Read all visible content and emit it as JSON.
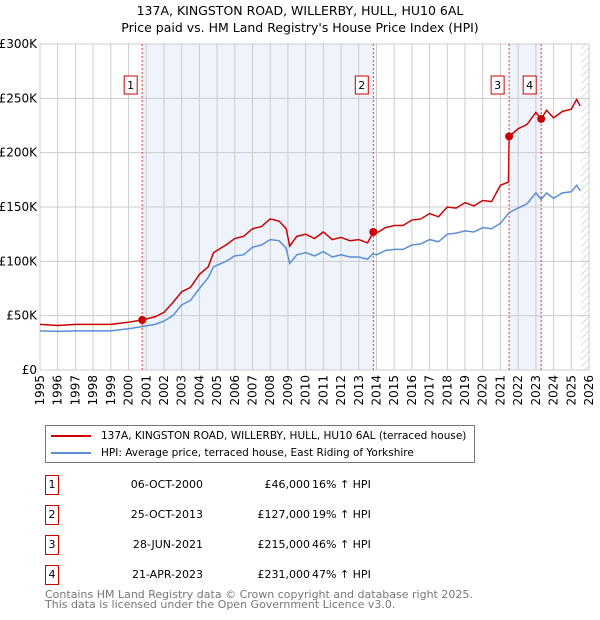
{
  "title_line1": "137A, KINGSTON ROAD, WILLERBY, HULL, HU10 6AL",
  "title_line2": "Price paid vs. HM Land Registry's House Price Index (HPI)",
  "chart_data": {
    "type": "line",
    "ylim": [
      0,
      300000
    ],
    "xlim": [
      1995,
      2026
    ],
    "yticks": [
      {
        "v": 0,
        "label": "£0"
      },
      {
        "v": 50000,
        "label": "£50K"
      },
      {
        "v": 100000,
        "label": "£100K"
      },
      {
        "v": 150000,
        "label": "£150K"
      },
      {
        "v": 200000,
        "label": "£200K"
      },
      {
        "v": 250000,
        "label": "£250K"
      },
      {
        "v": 300000,
        "label": "£300K"
      }
    ],
    "xticks": [
      "1995",
      "1996",
      "1997",
      "1998",
      "1999",
      "2000",
      "2001",
      "2002",
      "2003",
      "2004",
      "2005",
      "2006",
      "2007",
      "2008",
      "2009",
      "2010",
      "2011",
      "2012",
      "2013",
      "2014",
      "2015",
      "2016",
      "2017",
      "2018",
      "2019",
      "2020",
      "2021",
      "2022",
      "2023",
      "2024",
      "2025",
      "2026"
    ],
    "grid": true,
    "shaded_ranges": [
      [
        2000.77,
        2013.82
      ],
      [
        2021.49,
        2023.3
      ]
    ],
    "future_hatch_from": 2025.55,
    "series": [
      {
        "name": "137A, KINGSTON ROAD, WILLERBY, HULL, HU10 6AL (terraced house)",
        "color": "#cc0000",
        "x": [
          1995,
          1996,
          1997,
          1998,
          1999,
          2000,
          2000.77,
          2001.5,
          2002,
          2002.5,
          2003,
          2003.5,
          2004,
          2004.5,
          2004.8,
          2005.5,
          2006,
          2006.5,
          2007,
          2007.5,
          2008,
          2008.5,
          2008.9,
          2009.1,
          2009.5,
          2010,
          2010.5,
          2011,
          2011.5,
          2012,
          2012.5,
          2013,
          2013.5,
          2013.82,
          2014,
          2014.5,
          2015,
          2015.5,
          2016,
          2016.5,
          2017,
          2017.5,
          2018,
          2018.5,
          2019,
          2019.5,
          2020,
          2020.5,
          2021,
          2021.45,
          2021.49,
          2022,
          2022.5,
          2023,
          2023.3,
          2023.6,
          2024,
          2024.5,
          2025,
          2025.3,
          2025.5
        ],
        "y": [
          42000,
          41000,
          42000,
          42000,
          42000,
          44000,
          46000,
          49000,
          53000,
          62000,
          72000,
          76000,
          88000,
          95000,
          108000,
          115000,
          121000,
          123000,
          130000,
          132000,
          139000,
          137000,
          130000,
          114000,
          123000,
          125000,
          121000,
          127000,
          120000,
          122000,
          119000,
          120000,
          117000,
          127000,
          126000,
          131000,
          133000,
          133000,
          138000,
          139000,
          144000,
          141000,
          150000,
          149000,
          154000,
          151000,
          156000,
          155000,
          170000,
          173000,
          215000,
          222000,
          226000,
          237000,
          231000,
          239000,
          232000,
          238000,
          240000,
          249000,
          243000
        ]
      },
      {
        "name": "HPI: Average price, terraced house, East Riding of Yorkshire",
        "color": "#5b8fd4",
        "x": [
          1995,
          1996,
          1997,
          1998,
          1999,
          2000,
          2000.8,
          2001.5,
          2002,
          2002.5,
          2003,
          2003.5,
          2004,
          2004.5,
          2004.8,
          2005.5,
          2006,
          2006.5,
          2007,
          2007.5,
          2008,
          2008.5,
          2008.9,
          2009.1,
          2009.5,
          2010,
          2010.5,
          2011,
          2011.5,
          2012,
          2012.5,
          2013,
          2013.5,
          2013.8,
          2014,
          2014.5,
          2015,
          2015.5,
          2016,
          2016.5,
          2017,
          2017.5,
          2018,
          2018.5,
          2019,
          2019.5,
          2020,
          2020.5,
          2021,
          2021.5,
          2022,
          2022.5,
          2023,
          2023.3,
          2023.6,
          2024,
          2024.5,
          2025,
          2025.3,
          2025.5
        ],
        "y": [
          36000,
          35500,
          36000,
          36000,
          36000,
          38000,
          40000,
          42000,
          45000,
          50000,
          60000,
          64000,
          75000,
          85000,
          95000,
          100000,
          105000,
          106000,
          113000,
          115000,
          120000,
          119000,
          112000,
          98000,
          106000,
          108000,
          105000,
          109000,
          104000,
          106000,
          104000,
          104000,
          102000,
          107000,
          106000,
          110000,
          111000,
          111000,
          115000,
          116000,
          120000,
          118000,
          125000,
          126000,
          128000,
          127000,
          131000,
          130000,
          135000,
          145000,
          149000,
          153000,
          163000,
          157000,
          163000,
          158000,
          163000,
          164000,
          170000,
          165000
        ]
      }
    ],
    "sales": [
      {
        "n": "1",
        "x": 2000.77,
        "y": 46000
      },
      {
        "n": "2",
        "x": 2013.82,
        "y": 127000
      },
      {
        "n": "3",
        "x": 2021.49,
        "y": 215000
      },
      {
        "n": "4",
        "x": 2023.3,
        "y": 231000
      }
    ]
  },
  "legend": {
    "red": "137A, KINGSTON ROAD, WILLERBY, HULL, HU10 6AL (terraced house)",
    "blue": "HPI: Average price, terraced house, East Riding of Yorkshire"
  },
  "table": [
    {
      "n": "1",
      "date": "06-OCT-2000",
      "price": "£46,000",
      "hpi": "16% ↑ HPI"
    },
    {
      "n": "2",
      "date": "25-OCT-2013",
      "price": "£127,000",
      "hpi": "19% ↑ HPI"
    },
    {
      "n": "3",
      "date": "28-JUN-2021",
      "price": "£215,000",
      "hpi": "46% ↑ HPI"
    },
    {
      "n": "4",
      "date": "21-APR-2023",
      "price": "£231,000",
      "hpi": "47% ↑ HPI"
    }
  ],
  "footer_line1": "Contains HM Land Registry data © Crown copyright and database right 2025.",
  "footer_line2": "This data is licensed under the Open Government Licence v3.0."
}
